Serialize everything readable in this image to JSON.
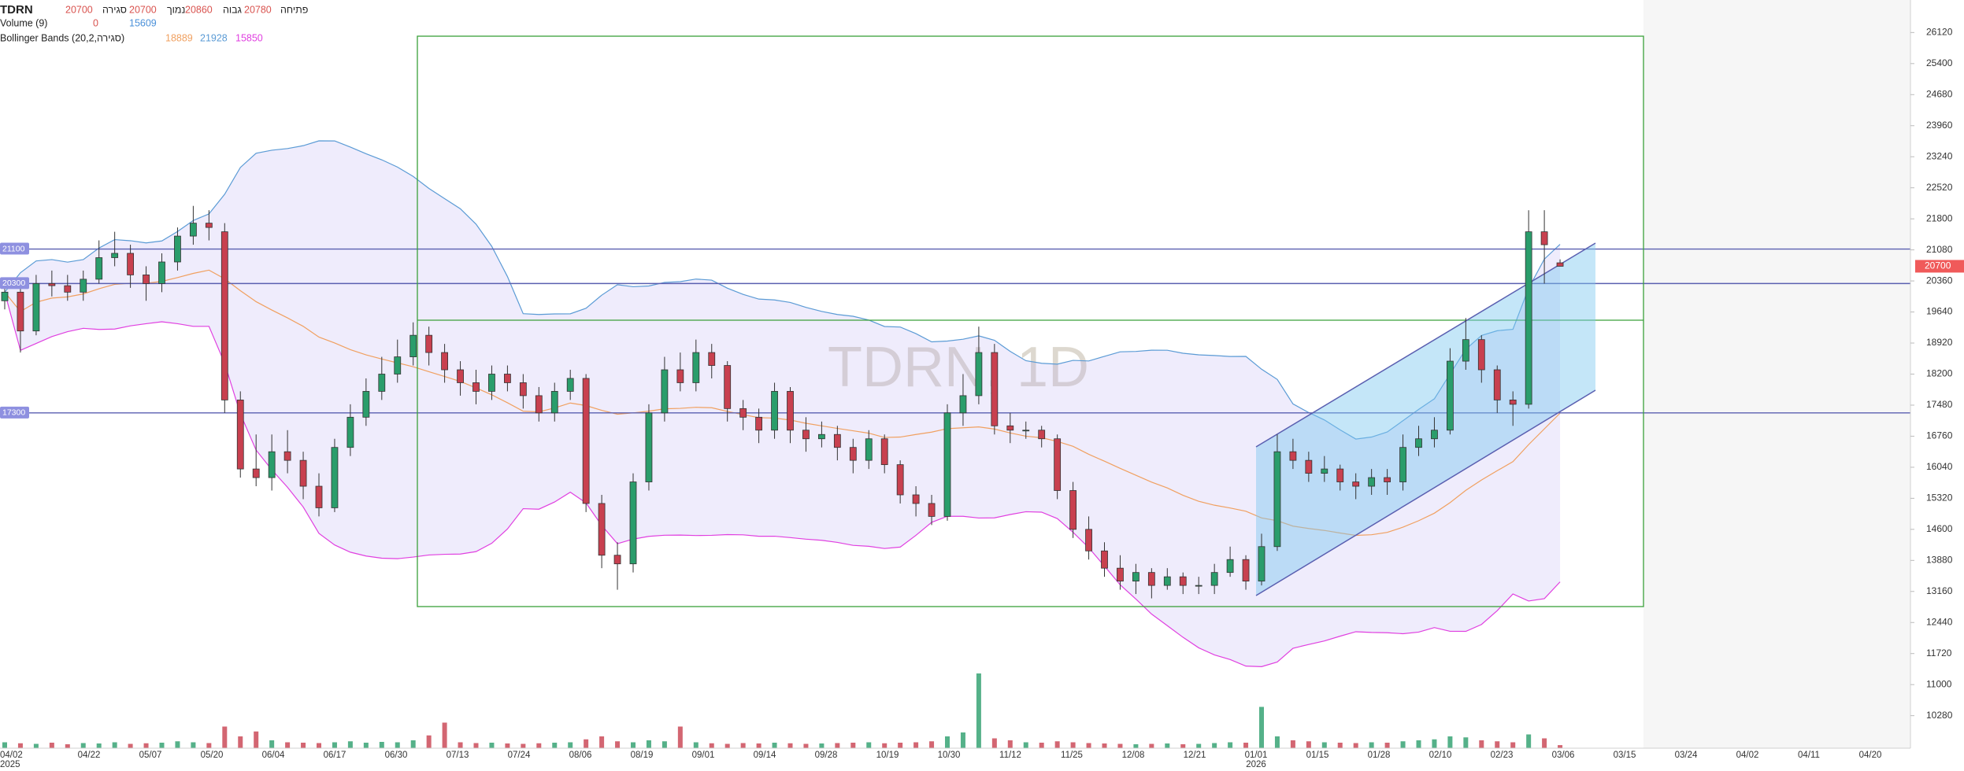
{
  "legend": {
    "symbol": "TDRN",
    "ohlc_labels": [
      "סגירה",
      "נמוך",
      "גבוה",
      "פתיחה"
    ],
    "volume": {
      "label": "Volume (9)",
      "values": [
        0,
        15609
      ],
      "colors": [
        "#d9534f",
        "#4a90d9"
      ]
    },
    "bollinger": {
      "label": "Bollinger Bands (20,2,סגירה)",
      "values": [
        18889,
        21928,
        15850
      ]
    }
  },
  "chart_data": {
    "type": "candlestick",
    "watermark": "TDRN, 1D",
    "ylim": [
      9526,
      26874
    ],
    "yticks": [
      26120,
      25400,
      24680,
      23960,
      23240,
      22520,
      21800,
      21080,
      20360,
      19640,
      18920,
      18200,
      17480,
      16760,
      16040,
      15320,
      14600,
      13880,
      13160,
      12440,
      11720,
      11000,
      10280
    ],
    "xtick_labels": [
      {
        "label": "04/02",
        "sub": "2025"
      },
      "04/22",
      "05/07",
      "05/20",
      "06/04",
      "06/17",
      "06/30",
      "07/13",
      "07/24",
      "08/06",
      "08/19",
      "09/01",
      "09/14",
      "09/28",
      "10/19",
      "10/30",
      "11/12",
      "11/25",
      "12/08",
      "12/21",
      {
        "label": "01/01",
        "sub": "2026"
      },
      "01/15",
      "01/28",
      "02/10",
      "02/23",
      "03/06",
      "03/15",
      "03/24",
      "04/02",
      "04/11",
      "04/20"
    ],
    "up_color": "#2a9d6b",
    "down_color": "#c8404f",
    "open": [
      19900,
      20100,
      19200,
      20300,
      20250,
      20100,
      20400,
      20900,
      21000,
      20500,
      20300,
      20800,
      21400,
      21700,
      21500,
      17600,
      16000,
      15800,
      16400,
      16200,
      15600,
      15100,
      16500,
      17200,
      17800,
      18200,
      18600,
      19100,
      18700,
      18300,
      18000,
      17800,
      18200,
      18000,
      17700,
      17300,
      17800,
      18100,
      15200,
      14000,
      13800,
      15700,
      17300,
      18300,
      18000,
      18700,
      18400,
      17400,
      17200,
      16900,
      17800,
      16900,
      16700,
      16800,
      16500,
      16200,
      16700,
      16100,
      15400,
      15200,
      14900,
      17300,
      17700,
      18700,
      17000,
      16900,
      16900,
      16700,
      15500,
      14600,
      14100,
      13700,
      13400,
      13600,
      13300,
      13500,
      13300,
      13300,
      13600,
      13900,
      13400,
      14200,
      16400,
      16200,
      15900,
      16000,
      15700,
      15600,
      15800,
      15700,
      16500,
      16700,
      16900,
      18500,
      19000,
      18300,
      17600,
      17500,
      21500,
      20780
    ],
    "high": [
      20400,
      20300,
      20500,
      20600,
      20500,
      20600,
      21300,
      21500,
      21200,
      20700,
      21000,
      21600,
      22100,
      22000,
      21700,
      17800,
      16800,
      16800,
      16900,
      16400,
      15900,
      16700,
      17500,
      18100,
      18600,
      19000,
      19400,
      19300,
      18900,
      18500,
      18300,
      18400,
      18400,
      18200,
      17900,
      18000,
      18300,
      18200,
      15400,
      14300,
      15900,
      17500,
      18600,
      18700,
      19000,
      18900,
      18500,
      17600,
      17400,
      18000,
      17900,
      17200,
      17100,
      17000,
      16700,
      16900,
      16800,
      16200,
      15600,
      15400,
      17500,
      18200,
      19300,
      18900,
      17300,
      17100,
      17000,
      16800,
      15700,
      14900,
      14300,
      14000,
      13800,
      13700,
      13700,
      13600,
      13500,
      13800,
      14200,
      14000,
      14500,
      16800,
      16700,
      16400,
      16300,
      16100,
      15900,
      16000,
      16000,
      16800,
      17000,
      17200,
      18800,
      19500,
      19100,
      18400,
      17800,
      22000,
      22000,
      20860
    ],
    "low": [
      19700,
      18700,
      19100,
      20000,
      19900,
      19900,
      20300,
      20700,
      20200,
      19900,
      20100,
      20600,
      21200,
      21300,
      17300,
      15800,
      15600,
      15500,
      15900,
      15300,
      14900,
      15000,
      16300,
      17000,
      17600,
      18000,
      18400,
      18400,
      18000,
      17700,
      17500,
      17600,
      17800,
      17400,
      17100,
      17100,
      17600,
      15000,
      13700,
      13200,
      13600,
      15500,
      17100,
      17800,
      17800,
      18100,
      17100,
      16900,
      16600,
      16700,
      16600,
      16400,
      16500,
      16200,
      15900,
      16000,
      15900,
      15200,
      14900,
      14700,
      14800,
      17000,
      17500,
      16800,
      16600,
      16700,
      16500,
      15300,
      14400,
      13900,
      13500,
      13200,
      13100,
      13000,
      13200,
      13100,
      13100,
      13100,
      13500,
      13200,
      13300,
      14100,
      16000,
      15700,
      15700,
      15500,
      15300,
      15400,
      15400,
      15500,
      16300,
      16500,
      16800,
      18300,
      18000,
      17300,
      17000,
      17400,
      20300,
      20700
    ],
    "close": [
      20100,
      19200,
      20300,
      20250,
      20100,
      20400,
      20900,
      21000,
      20500,
      20300,
      20800,
      21400,
      21700,
      21600,
      17600,
      16000,
      15800,
      16400,
      16200,
      15600,
      15100,
      16500,
      17200,
      17800,
      18200,
      18600,
      19100,
      18700,
      18300,
      18000,
      17800,
      18200,
      18000,
      17700,
      17300,
      17800,
      18100,
      15200,
      14000,
      13800,
      15700,
      17300,
      18300,
      18000,
      18700,
      18400,
      17400,
      17200,
      16900,
      17800,
      16900,
      16700,
      16800,
      16500,
      16200,
      16700,
      16100,
      15400,
      15200,
      14900,
      17300,
      17700,
      18700,
      17000,
      16900,
      16900,
      16700,
      15500,
      14600,
      14100,
      13700,
      13400,
      13600,
      13300,
      13500,
      13300,
      13300,
      13600,
      13900,
      13400,
      14200,
      16400,
      16200,
      15900,
      16000,
      15700,
      15600,
      15800,
      15700,
      16500,
      16700,
      16900,
      18500,
      19000,
      18300,
      17600,
      17500,
      21500,
      21200,
      20700
    ],
    "volume": [
      30000,
      25000,
      22000,
      28000,
      20000,
      26000,
      24000,
      30000,
      22000,
      25000,
      28000,
      35000,
      30000,
      26000,
      110000,
      60000,
      85000,
      40000,
      30000,
      28000,
      26000,
      30000,
      35000,
      28000,
      32000,
      30000,
      40000,
      65000,
      130000,
      30000,
      26000,
      28000,
      24000,
      22000,
      25000,
      28000,
      30000,
      45000,
      60000,
      35000,
      30000,
      40000,
      35000,
      110000,
      30000,
      25000,
      22000,
      26000,
      24000,
      28000,
      25000,
      22000,
      24000,
      26000,
      28000,
      30000,
      25000,
      28000,
      30000,
      35000,
      60000,
      80000,
      380000,
      50000,
      40000,
      30000,
      28000,
      35000,
      30000,
      26000,
      24000,
      22000,
      20000,
      22000,
      24000,
      20000,
      22000,
      26000,
      30000,
      28000,
      210000,
      60000,
      40000,
      35000,
      30000,
      28000,
      26000,
      30000,
      28000,
      35000,
      40000,
      45000,
      60000,
      55000,
      40000,
      35000,
      30000,
      70000,
      50000,
      15609
    ],
    "bollinger": {
      "period": 20,
      "mult": 2,
      "colors": [
        "#f0a060",
        "#5b9bd5",
        "#e040e0"
      ],
      "fill": "#b4aaf0"
    },
    "hlines": [
      21100,
      20300,
      17300
    ],
    "hline_color": "#5a5fb0",
    "last_price_color": "#f05a5a"
  }
}
